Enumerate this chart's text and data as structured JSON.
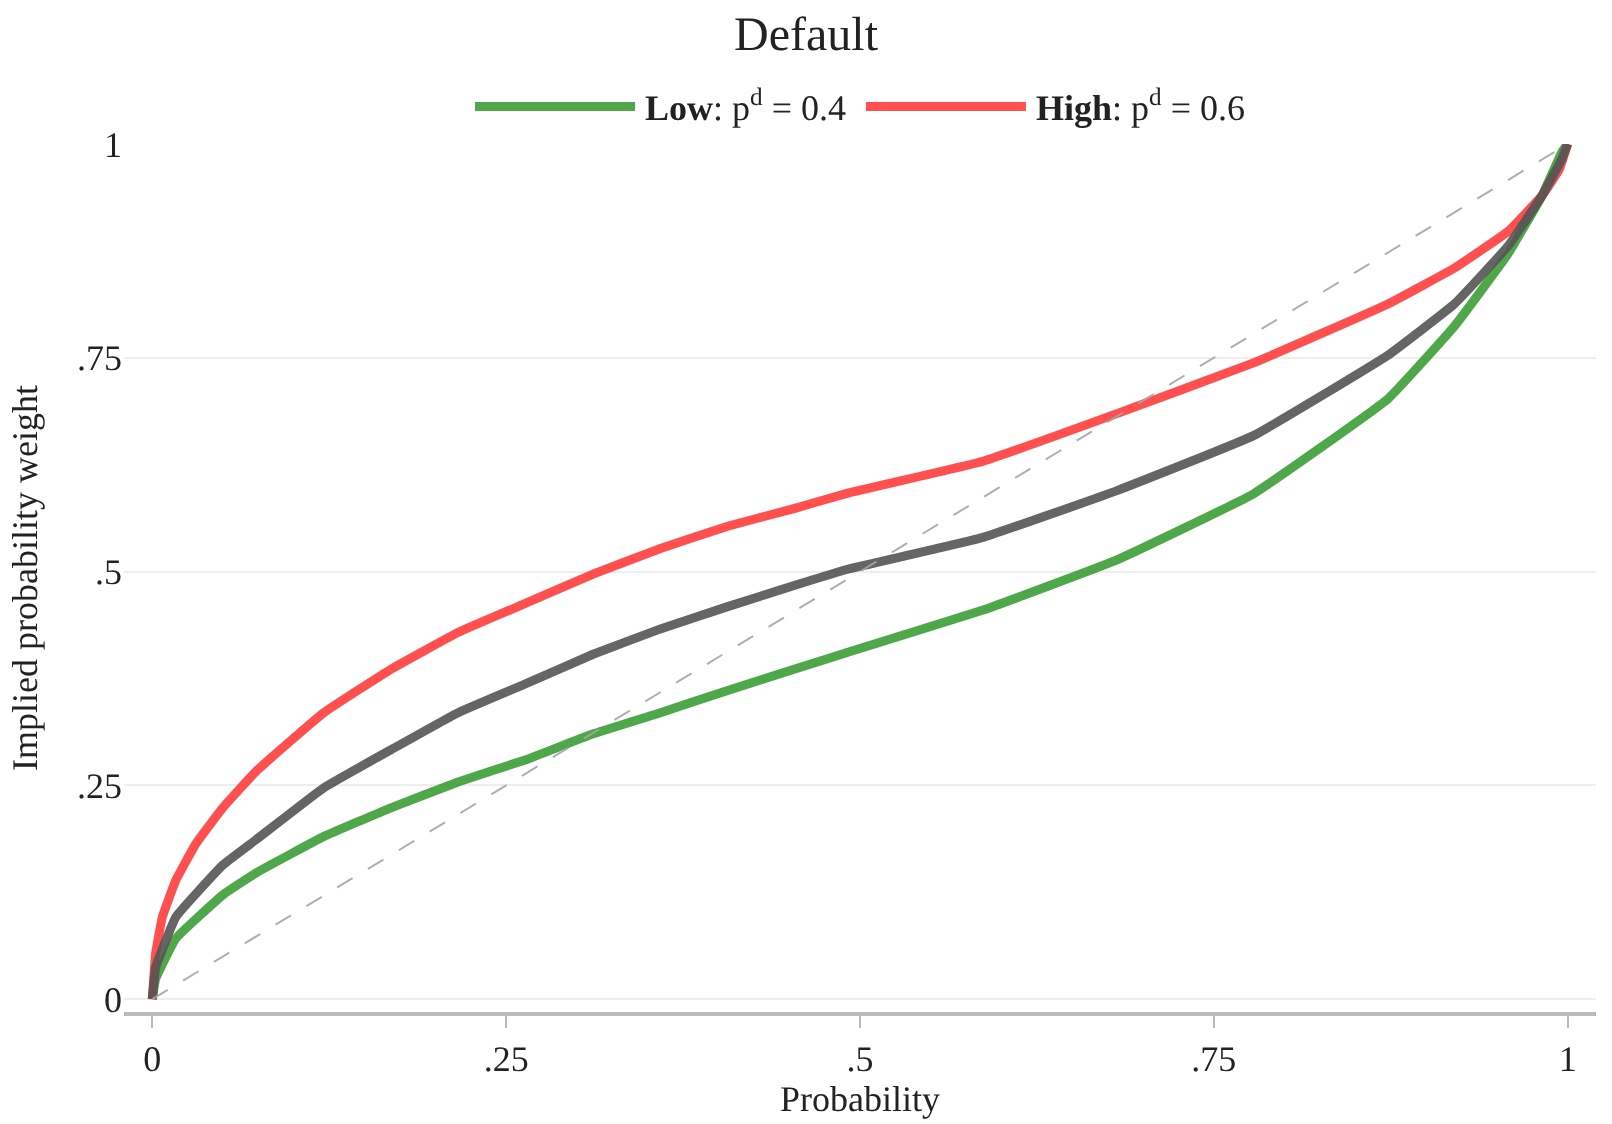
{
  "chart_data": {
    "type": "line",
    "title": "Default",
    "xlabel": "Probability",
    "ylabel": "Implied probability weight",
    "xlim": [
      -0.02,
      1.02
    ],
    "ylim": [
      -0.015,
      1
    ],
    "xticks": [
      {
        "value": 0,
        "label": "0"
      },
      {
        "value": 0.25,
        "label": ".25"
      },
      {
        "value": 0.5,
        "label": ".5"
      },
      {
        "value": 0.75,
        "label": ".75"
      },
      {
        "value": 1,
        "label": "1"
      }
    ],
    "yticks": [
      {
        "value": 0,
        "label": "0"
      },
      {
        "value": 0.25,
        "label": ".25"
      },
      {
        "value": 0.5,
        "label": ".5"
      },
      {
        "value": 0.75,
        "label": ".75"
      },
      {
        "value": 1,
        "label": "1"
      }
    ],
    "grid": "y",
    "legend": "top",
    "marker": "none",
    "series": [
      {
        "name": "Low: p$^{d}$ = 0.4",
        "color": "#3b9e35",
        "x": [
          0,
          0.0024,
          0.0166,
          0.0499,
          0.0737,
          0.121,
          0.169,
          0.216,
          0.264,
          0.311,
          0.359,
          0.4065,
          0.454,
          0.492,
          0.587,
          0.682,
          0.778,
          0.873,
          0.92,
          0.958,
          0.982,
          0.996,
          1
        ],
        "values": [
          0,
          0.024,
          0.071,
          0.122,
          0.148,
          0.19,
          0.224,
          0.254,
          0.28,
          0.31,
          0.335,
          0.361,
          0.386,
          0.406,
          0.455,
          0.514,
          0.591,
          0.702,
          0.787,
          0.872,
          0.94,
          0.991,
          1
        ]
      },
      {
        "name": "High: p$^{d}$ = 0.6",
        "color": "#ff3c3c",
        "x": [
          0,
          0.0024,
          0.0071,
          0.0166,
          0.0309,
          0.0499,
          0.0737,
          0.1212,
          0.1688,
          0.2163,
          0.2639,
          0.3114,
          0.359,
          0.4065,
          0.454,
          0.492,
          0.587,
          0.682,
          0.778,
          0.873,
          0.92,
          0.958,
          0.982,
          0.994,
          1
        ],
        "values": [
          0,
          0.054,
          0.096,
          0.139,
          0.182,
          0.224,
          0.267,
          0.335,
          0.386,
          0.429,
          0.463,
          0.497,
          0.527,
          0.553,
          0.574,
          0.592,
          0.629,
          0.685,
          0.744,
          0.813,
          0.855,
          0.898,
          0.94,
          0.97,
          1
        ]
      },
      {
        "color": "#555555",
        "x": [
          0,
          0.0024,
          0.0166,
          0.0499,
          0.0737,
          0.121,
          0.169,
          0.216,
          0.264,
          0.311,
          0.359,
          0.4065,
          0.454,
          0.492,
          0.587,
          0.682,
          0.778,
          0.873,
          0.92,
          0.958,
          0.982,
          0.996,
          1
        ],
        "values": [
          0,
          0.037,
          0.096,
          0.157,
          0.187,
          0.247,
          0.292,
          0.335,
          0.369,
          0.403,
          0.433,
          0.459,
          0.484,
          0.503,
          0.54,
          0.595,
          0.659,
          0.753,
          0.813,
          0.881,
          0.94,
          0.983,
          1
        ]
      },
      {
        "color": "#a6a6a6",
        "line_style": "dashed",
        "x": [
          0,
          1
        ],
        "values": [
          0,
          1
        ]
      }
    ]
  }
}
